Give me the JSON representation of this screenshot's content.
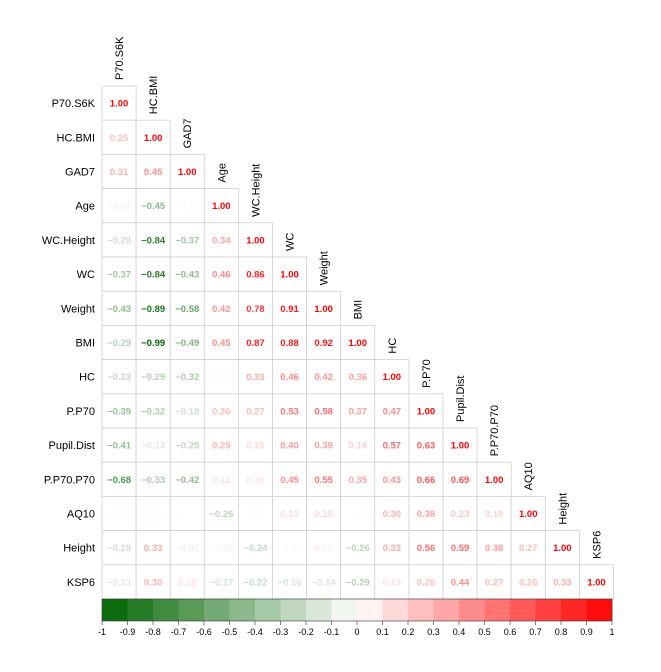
{
  "chart_data": {
    "type": "heatmap",
    "title": "",
    "variables": [
      "P70.S6K",
      "HC.BMI",
      "GAD7",
      "Age",
      "WC.Height",
      "WC",
      "Weight",
      "BMI",
      "HC",
      "P.P70",
      "Pupil.Dist",
      "P.P70.P70",
      "AQ10",
      "Height",
      "KSP6"
    ],
    "matrix": [
      [
        1.0
      ],
      [
        0.25,
        1.0
      ],
      [
        0.31,
        0.45,
        1.0
      ],
      [
        -0.07,
        -0.45,
        -0.03,
        1.0
      ],
      [
        -0.2,
        -0.84,
        -0.37,
        0.34,
        1.0
      ],
      [
        -0.37,
        -0.84,
        -0.43,
        0.46,
        0.86,
        1.0
      ],
      [
        -0.43,
        -0.89,
        -0.58,
        0.42,
        0.78,
        0.91,
        1.0
      ],
      [
        -0.29,
        -0.99,
        -0.49,
        0.45,
        0.87,
        0.88,
        0.92,
        1.0
      ],
      [
        -0.23,
        -0.29,
        -0.32,
        0.03,
        0.33,
        0.46,
        0.42,
        0.36,
        1.0
      ],
      [
        -0.39,
        -0.32,
        -0.18,
        0.26,
        0.27,
        0.53,
        0.58,
        0.37,
        0.47,
        1.0
      ],
      [
        -0.41,
        -0.13,
        -0.25,
        0.29,
        0.15,
        0.4,
        0.39,
        0.19,
        0.57,
        0.63,
        1.0
      ],
      [
        -0.68,
        -0.33,
        -0.42,
        0.12,
        0.1,
        0.45,
        0.55,
        0.35,
        0.43,
        0.66,
        0.69,
        1.0
      ],
      [
        0.03,
        0.03,
        -0.01,
        -0.26,
        -0.02,
        0.13,
        0.15,
        -0.01,
        0.3,
        0.38,
        0.23,
        0.19,
        1.0
      ],
      [
        -0.19,
        0.33,
        -0.07,
        -0.05,
        -0.24,
        -0.01,
        0.07,
        -0.26,
        0.33,
        0.56,
        0.59,
        0.38,
        0.27,
        1.0
      ],
      [
        -0.13,
        0.3,
        0.12,
        -0.17,
        -0.22,
        -0.16,
        -0.14,
        -0.29,
        0.13,
        0.26,
        0.44,
        0.27,
        0.26,
        0.33,
        1.0
      ]
    ],
    "colorbar": {
      "min": -1,
      "max": 1,
      "ticks": [
        "-1",
        "-0.9",
        "-0.8",
        "-0.7",
        "-0.6",
        "-0.5",
        "-0.4",
        "-0.3",
        "-0.2",
        "-0.1",
        "0",
        "0.1",
        "0.2",
        "0.3",
        "0.4",
        "0.5",
        "0.6",
        "0.7",
        "0.8",
        "0.9",
        "1"
      ],
      "negative_color": "#006400",
      "positive_color": "#FF0000"
    }
  }
}
